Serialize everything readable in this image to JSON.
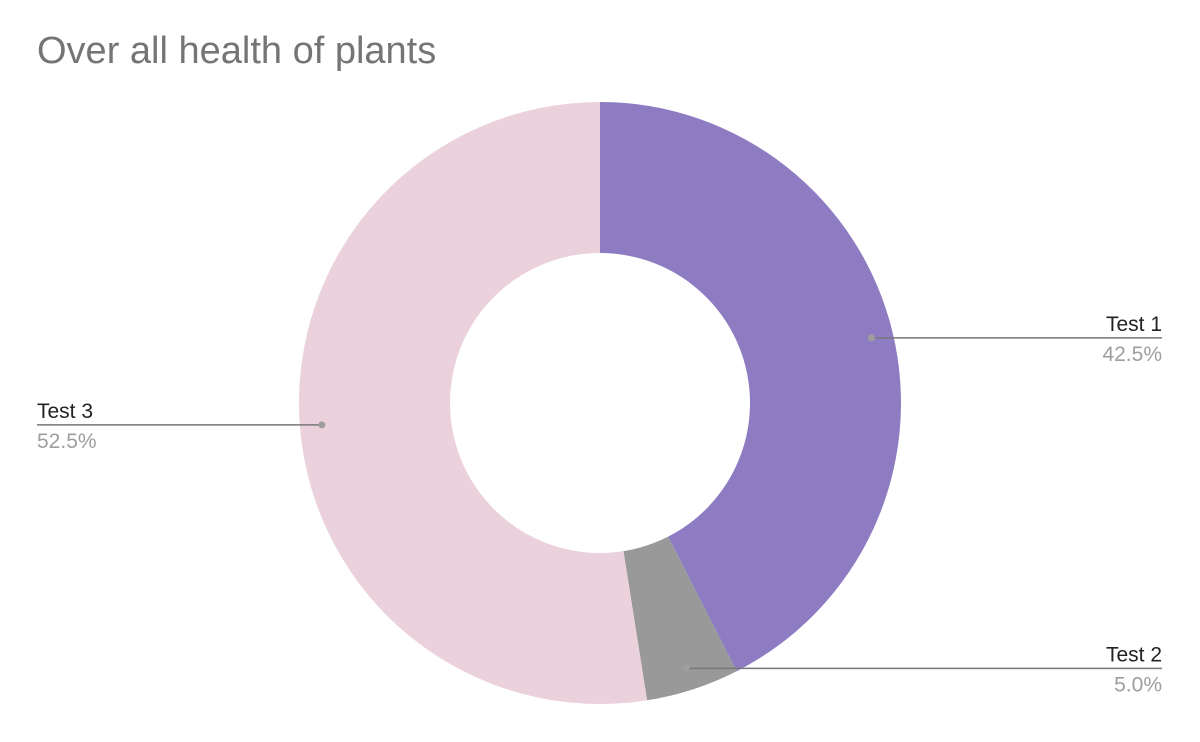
{
  "chart_data": {
    "type": "pie",
    "donut": true,
    "title": "Over all health of plants",
    "slices": [
      {
        "label": "Test 1",
        "value": 42.5,
        "display": "42.5%",
        "color": "#8e7cc3"
      },
      {
        "label": "Test 2",
        "value": 5.0,
        "display": "5.0%",
        "color": "#999999"
      },
      {
        "label": "Test 3",
        "value": 52.5,
        "display": "52.5%",
        "color": "#ead1dc"
      }
    ],
    "legend": "none",
    "labels": "outside-with-leader-lines"
  }
}
